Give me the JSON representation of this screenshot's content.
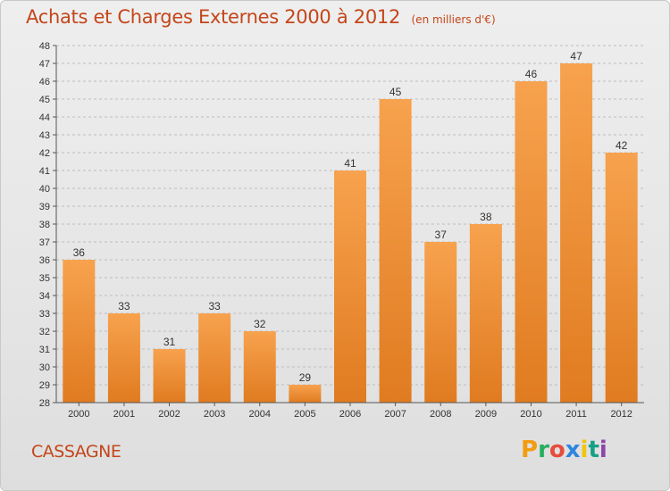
{
  "header": {
    "title": "Achats et Charges Externes 2000 à 2012",
    "unit": "(en milliers d'€)"
  },
  "footer": {
    "commune": "CASSAGNE",
    "brand": "Proxiti",
    "brand_colors": [
      "#f39c12",
      "#27ae60",
      "#e74c3c",
      "#2e86de",
      "#f1c40f",
      "#16a085",
      "#8e44ad"
    ]
  },
  "colors": {
    "title": "#c4461a",
    "bar_top": "#f7a24e",
    "bar_bottom": "#e07b20",
    "grid": "#bdbdbd",
    "axis_text": "#333333"
  },
  "chart_data": {
    "type": "bar",
    "categories": [
      "2000",
      "2001",
      "2002",
      "2003",
      "2004",
      "2005",
      "2006",
      "2007",
      "2008",
      "2009",
      "2010",
      "2011",
      "2012"
    ],
    "values": [
      36,
      33,
      31,
      33,
      32,
      29,
      41,
      45,
      37,
      38,
      46,
      47,
      42
    ],
    "ylim": [
      28,
      48
    ],
    "yticks": [
      28,
      29,
      30,
      31,
      32,
      33,
      34,
      35,
      36,
      37,
      38,
      39,
      40,
      41,
      42,
      43,
      44,
      45,
      46,
      47,
      48
    ],
    "grid": true,
    "data_labels": true
  }
}
